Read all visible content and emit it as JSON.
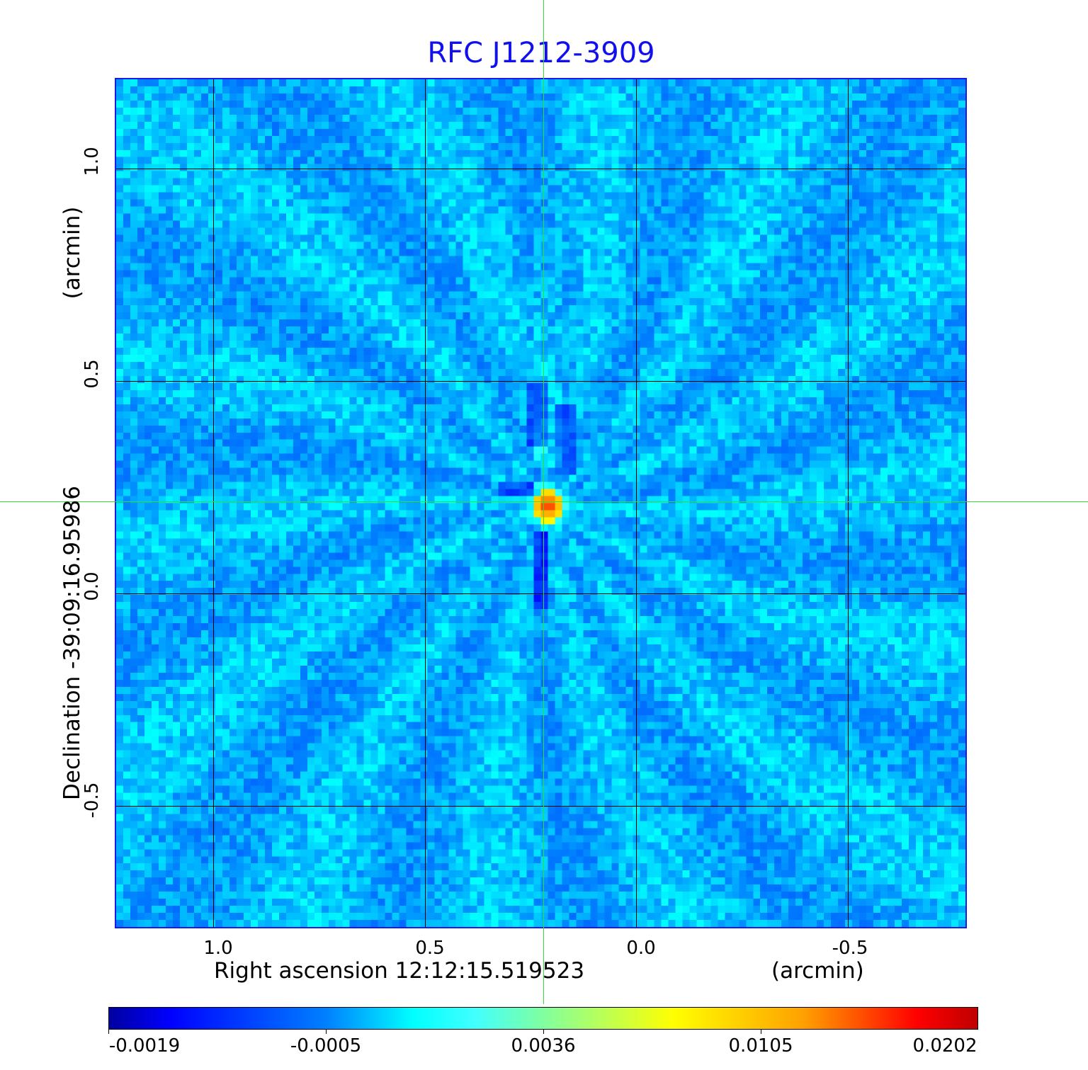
{
  "chart_data": {
    "type": "heatmap",
    "title": "RFC J1212-3909",
    "xlabel": "Right ascension  12:12:15.519523",
    "xunit": "(arcmin)",
    "ylabel": "Declination  -39:09:16.95986",
    "yunit": "(arcmin)",
    "xlim": [
      1.23,
      -0.78
    ],
    "ylim": [
      -0.79,
      1.21
    ],
    "xticks": [
      "1.0",
      "0.5",
      "0.0",
      "-0.5"
    ],
    "xtick_values": [
      1.0,
      0.5,
      0.0,
      -0.5
    ],
    "yticks": [
      "1.0",
      "0.5",
      "0.0",
      "-0.5"
    ],
    "ytick_values": [
      1.0,
      0.5,
      0.0,
      -0.5
    ],
    "grid": true,
    "crosshair": {
      "x": 0.22,
      "y": 0.22
    },
    "peak": {
      "x": 0.22,
      "y": 0.22,
      "value": 0.0202
    },
    "background_level": [
      -0.0019,
      0.0036
    ],
    "colormap": "jet",
    "colorbar": {
      "ticks": [
        "-0.0019",
        "-0.0005",
        "0.0036",
        "0.0105",
        "0.0202"
      ],
      "values": [
        -0.0019,
        -0.0005,
        0.0036,
        0.0105,
        0.0202
      ],
      "placement": "bottom"
    }
  },
  "colors": {
    "title": "#1010ee",
    "frame": "#1a1ae0",
    "crosshair": "#33dd33"
  }
}
